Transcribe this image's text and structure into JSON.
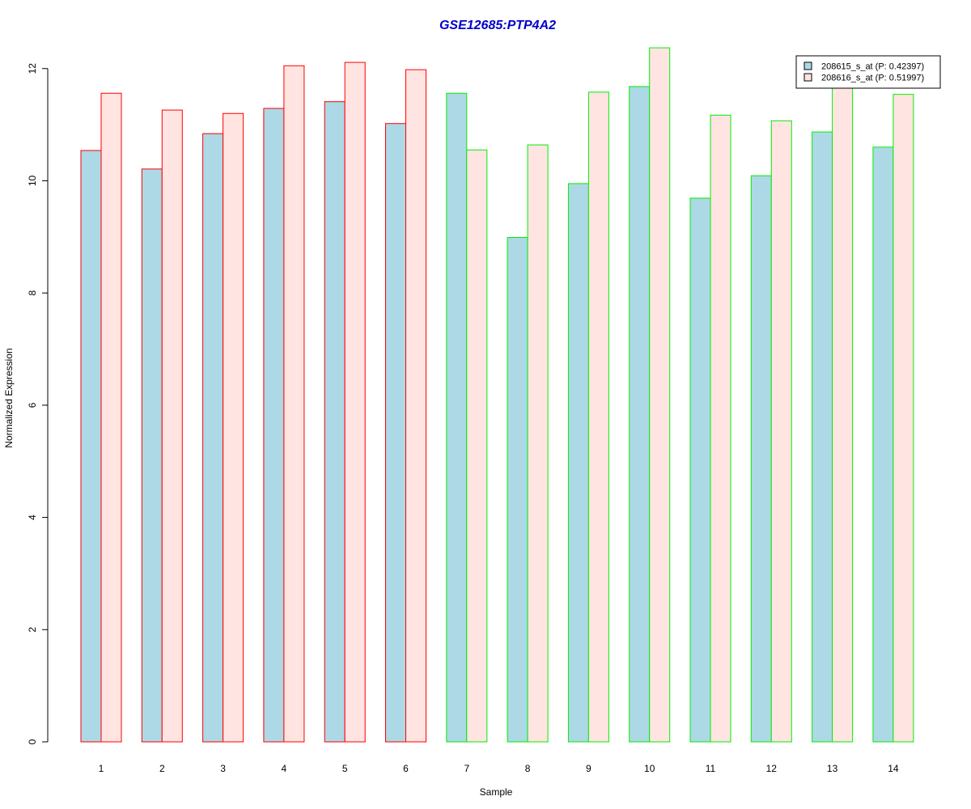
{
  "chart_data": {
    "type": "bar",
    "title": "GSE12685:PTP4A2",
    "xlabel": "Sample",
    "ylabel": "Normalized Expression",
    "ylim": [
      0,
      12.4
    ],
    "yticks": [
      0,
      2,
      4,
      6,
      8,
      10,
      12
    ],
    "categories": [
      "1",
      "2",
      "3",
      "4",
      "5",
      "6",
      "7",
      "8",
      "9",
      "10",
      "11",
      "12",
      "13",
      "14"
    ],
    "group_outline_colors": [
      "#ff0000",
      "#ff0000",
      "#ff0000",
      "#ff0000",
      "#ff0000",
      "#ff0000",
      "#00ee00",
      "#00ee00",
      "#00ee00",
      "#00ee00",
      "#00ee00",
      "#00ee00",
      "#00ee00",
      "#00ee00"
    ],
    "series": [
      {
        "name": "208615_s_at (P: 0.42397)",
        "fill": "#add8e6",
        "values": [
          10.54,
          10.21,
          10.84,
          11.29,
          11.41,
          11.02,
          11.56,
          8.99,
          9.95,
          11.68,
          9.69,
          10.09,
          10.87,
          10.6
        ]
      },
      {
        "name": "208616_s_at (P: 0.51997)",
        "fill": "#ffe4e1",
        "values": [
          11.56,
          11.26,
          11.2,
          12.05,
          12.11,
          11.98,
          10.55,
          10.64,
          11.58,
          12.37,
          11.17,
          11.07,
          11.7,
          11.54
        ]
      }
    ],
    "legend_position": "top-right",
    "grid": false
  }
}
